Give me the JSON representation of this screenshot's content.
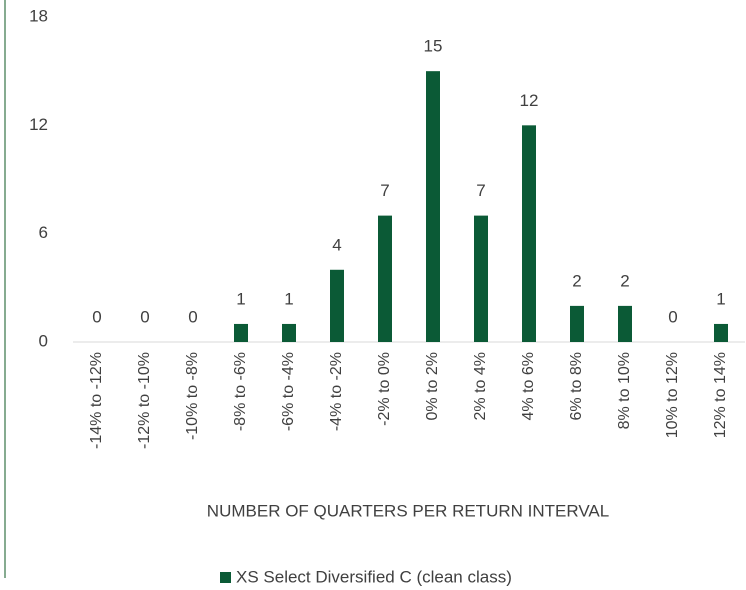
{
  "chart_data": {
    "type": "bar",
    "categories": [
      "-14% to -12%",
      "-12% to -10%",
      "-10% to -8%",
      "-8% to -6%",
      "-6% to -4%",
      "-4% to -2%",
      "-2% to 0%",
      "0% to 2%",
      "2% to 4%",
      "4% to 6%",
      "6% to 8%",
      "8% to 10%",
      "10% to 12%",
      "12% to 14%"
    ],
    "series": [
      {
        "name": "XS Select Diversified C (clean class)",
        "color": "#0b5a36",
        "values": [
          0,
          0,
          0,
          1,
          1,
          4,
          7,
          15,
          7,
          12,
          2,
          2,
          0,
          1
        ]
      }
    ],
    "x_label": "NUMBER OF QUARTERS PER RETURN INTERVAL",
    "ylim": [
      0,
      18
    ],
    "yticks": [
      0,
      6,
      12,
      18
    ],
    "grid": false,
    "legend": "bottom"
  }
}
